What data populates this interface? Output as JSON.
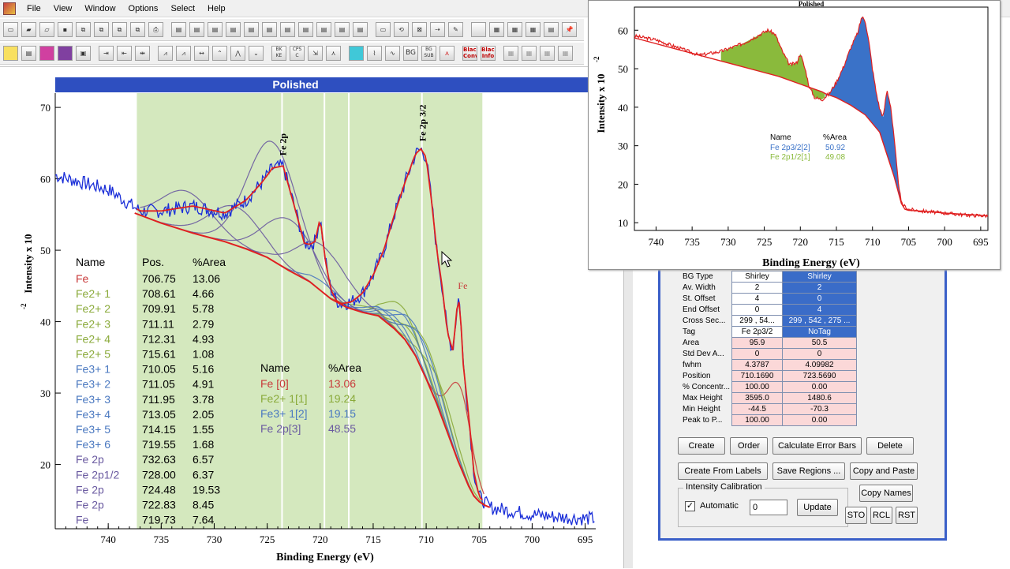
{
  "app": {
    "icon_name": "app-icon"
  },
  "menu": [
    "File",
    "View",
    "Window",
    "Options",
    "Select",
    "Help"
  ],
  "toolbar1": [
    "new",
    "open",
    "open2",
    "save",
    "copy",
    "copy2",
    "copy3",
    "copy4",
    "print",
    "reg1",
    "reg2",
    "reg3",
    "reg4",
    "reg5",
    "reg6",
    "reg7",
    "reg8",
    "reg9",
    "reg10",
    "reg11",
    "rect",
    "loop",
    "sel",
    "arrow",
    "pen",
    "Lib",
    "tile1",
    "tile2",
    "tile3",
    "folder",
    "tack"
  ],
  "toolbar2_labels": {
    "bk_ke": "BK KE",
    "cps_c": "CPS C",
    "bg": "BG",
    "bg_sub": "BG SUB",
    "black_conv": "Black Conv",
    "black_info": "Black Info"
  },
  "colors": {
    "title_bar": "#2e4fc0",
    "region_band": "#d4e8be",
    "envelope": "#e02020",
    "raw": "#1a2ed8",
    "fe": "#c83a3a",
    "fe2": "#8aaa3a",
    "fe3": "#4a78c0",
    "fe2p": "#6a5aa0",
    "overlay_green": "#8aba3c",
    "overlay_blue": "#3a72c8"
  },
  "main_chart": {
    "title": "Polished",
    "xlabel": "Binding Energy (eV)",
    "ylabel": "Intensity x 10",
    "ylabel_exp": "-2",
    "peak_labels": [
      "Fe 2p",
      "Fe 2p 3/2",
      "Fe"
    ],
    "xticks": [
      "740",
      "735",
      "730",
      "725",
      "720",
      "715",
      "710",
      "705",
      "700",
      "695"
    ],
    "yticks": [
      "70",
      "60",
      "50",
      "40",
      "30",
      "20"
    ],
    "table_headers": [
      "Name",
      "Pos.",
      "%Area"
    ],
    "table_rows": [
      [
        "Fe",
        "706.75",
        "13.06",
        "fe"
      ],
      [
        "Fe2+ 1",
        "708.61",
        "4.66",
        "fe2"
      ],
      [
        "Fe2+ 2",
        "709.91",
        "5.78",
        "fe2"
      ],
      [
        "Fe2+ 3",
        "711.11",
        "2.79",
        "fe2"
      ],
      [
        "Fe2+ 4",
        "712.31",
        "4.93",
        "fe2"
      ],
      [
        "Fe2+ 5",
        "715.61",
        "1.08",
        "fe2"
      ],
      [
        "Fe3+ 1",
        "710.05",
        "5.16",
        "fe3"
      ],
      [
        "Fe3+ 2",
        "711.05",
        "4.91",
        "fe3"
      ],
      [
        "Fe3+ 3",
        "711.95",
        "3.78",
        "fe3"
      ],
      [
        "Fe3+ 4",
        "713.05",
        "2.05",
        "fe3"
      ],
      [
        "Fe3+ 5",
        "714.15",
        "1.55",
        "fe3"
      ],
      [
        "Fe3+ 6",
        "719.55",
        "1.68",
        "fe3"
      ],
      [
        "Fe 2p",
        "732.63",
        "6.57",
        "fe2p"
      ],
      [
        "Fe 2p1/2",
        "728.00",
        "6.37",
        "fe2p"
      ],
      [
        "Fe 2p",
        "724.48",
        "19.53",
        "fe2p"
      ],
      [
        "Fe 2p",
        "722.83",
        "8.45",
        "fe2p"
      ],
      [
        "Fe",
        "719.73",
        "7.64",
        "fe2p"
      ]
    ],
    "summary_headers": [
      "Name",
      "%Area"
    ],
    "summary_rows": [
      [
        "Fe [0]",
        "13.06",
        "fe"
      ],
      [
        "Fe2+ 1[1]",
        "19.24",
        "fe2"
      ],
      [
        "Fe3+ 1[2]",
        "19.15",
        "fe3"
      ],
      [
        "Fe 2p[3]",
        "48.55",
        "fe2p"
      ]
    ]
  },
  "chart_data": [
    {
      "type": "line",
      "title": "Polished",
      "xlabel": "Binding Energy (eV)",
      "ylabel": "Intensity x 10-2",
      "xlim": [
        745,
        694
      ],
      "ylim": [
        11,
        72
      ],
      "x_reversed": true,
      "grid": false,
      "region_bands": [
        [
          737.3,
          704.7
        ]
      ],
      "marker_lines": [
        723.6,
        719.6,
        717.3,
        710.4
      ],
      "series": [
        {
          "name": "",
          "x": [
            745,
            740,
            737,
            735,
            732,
            729,
            727,
            725.5,
            724.5,
            723.5,
            722.5,
            721.5,
            721,
            720.5,
            720,
            719.5,
            719,
            718.5,
            718,
            717,
            716,
            715,
            714,
            713,
            712,
            711,
            710.5,
            710,
            709.5,
            709,
            708.5,
            708,
            707.5,
            707.2,
            707,
            706.8,
            706.5,
            706,
            705.5,
            705,
            704,
            702,
            700,
            698,
            696,
            694
          ],
          "y": [
            60.5,
            58.5,
            55.5,
            55.5,
            56.2,
            55.2,
            57.0,
            59.5,
            61.5,
            61.8,
            56.5,
            51.0,
            50.8,
            51.2,
            54.5,
            48.5,
            44.5,
            43.0,
            42.5,
            42.8,
            44.0,
            46.5,
            50.0,
            55.0,
            59.5,
            63.5,
            64.2,
            63.0,
            57.0,
            50.0,
            45.0,
            38.5,
            36.0,
            40.0,
            43.5,
            42.0,
            34.0,
            27.0,
            19.0,
            15.5,
            14.0,
            13.5,
            13.0,
            12.7,
            12.5,
            12.4
          ]
        }
      ]
    },
    {
      "type": "area",
      "title": "Polished",
      "xlabel": "Binding Energy (eV)",
      "ylabel": "Intensity x 10-2",
      "xlim": [
        743,
        694
      ],
      "ylim": [
        8,
        66
      ],
      "x_reversed": true,
      "legend_position": "center",
      "legend_headers": [
        "Name",
        "%Area"
      ],
      "series": [
        {
          "name": "Fe 2p3/2[2]",
          "area_pct": "50.92"
        },
        {
          "name": "Fe 2p1/2[1]",
          "area_pct": "49.08"
        }
      ],
      "xticks": [
        "740",
        "735",
        "730",
        "725",
        "720",
        "715",
        "710",
        "705",
        "700",
        "695"
      ],
      "yticks": [
        "60",
        "50",
        "40",
        "30",
        "20",
        "10"
      ]
    }
  ],
  "overlay_chart": {
    "title": "Polished",
    "xlabel": "Binding Energy (eV)",
    "ylabel": "Intensity x 10",
    "ylabel_exp": "-2",
    "legend_headers": [
      "Name",
      "%Area"
    ],
    "legend_rows": [
      [
        "Fe 2p3/2[2]",
        "50.92",
        "fe3"
      ],
      [
        "Fe 2p1/2[1]",
        "49.08",
        "fe2"
      ]
    ],
    "xticks": [
      "740",
      "735",
      "730",
      "725",
      "720",
      "715",
      "710",
      "705",
      "700",
      "695"
    ],
    "yticks": [
      "60",
      "50",
      "40",
      "30",
      "20",
      "10"
    ]
  },
  "regions_table": {
    "rows": [
      {
        "label": "BG Type",
        "v1": "Shirley",
        "v2": "Shirley",
        "pink": false
      },
      {
        "label": "Av. Width",
        "v1": "2",
        "v2": "2",
        "pink": false
      },
      {
        "label": "St. Offset",
        "v1": "4",
        "v2": "0",
        "pink": false
      },
      {
        "label": "End Offset",
        "v1": "0",
        "v2": "4",
        "pink": false
      },
      {
        "label": "Cross Sec...",
        "v1": "299 , 54...",
        "v2": "299 , 542 , 275 ...",
        "pink": false
      },
      {
        "label": "Tag",
        "v1": "Fe 2p3/2",
        "v2": "NoTag",
        "pink": false
      },
      {
        "label": "Area",
        "v1": "95.9",
        "v2": "50.5",
        "pink": true
      },
      {
        "label": "Std Dev A...",
        "v1": "0",
        "v2": "0",
        "pink": true
      },
      {
        "label": "fwhm",
        "v1": "4.3787",
        "v2": "4.09982",
        "pink": true
      },
      {
        "label": "Position",
        "v1": "710.1690",
        "v2": "723.5690",
        "pink": true
      },
      {
        "label": "% Concentr...",
        "v1": "100.00",
        "v2": "0.00",
        "pink": true
      },
      {
        "label": "Max Height",
        "v1": "3595.0",
        "v2": "1480.6",
        "pink": true
      },
      {
        "label": "Min Height",
        "v1": "-44.5",
        "v2": "-70.3",
        "pink": true
      },
      {
        "label": "Peak to P...",
        "v1": "100.00",
        "v2": "0.00",
        "pink": true
      }
    ]
  },
  "buttons": {
    "create": "Create",
    "order": "Order",
    "calc_error": "Calculate Error Bars",
    "delete": "Delete",
    "create_from_labels": "Create From Labels",
    "save_regions": "Save Regions ...",
    "copy_paste": "Copy and Paste",
    "copy_names": "Copy Names",
    "update": "Update",
    "sto": "STO",
    "rcl": "RCL",
    "rst": "RST"
  },
  "calibration": {
    "title": "Intensity Calibration",
    "auto_label": "Automatic",
    "auto_checked": true,
    "check_mark": "✓",
    "value": "0"
  }
}
